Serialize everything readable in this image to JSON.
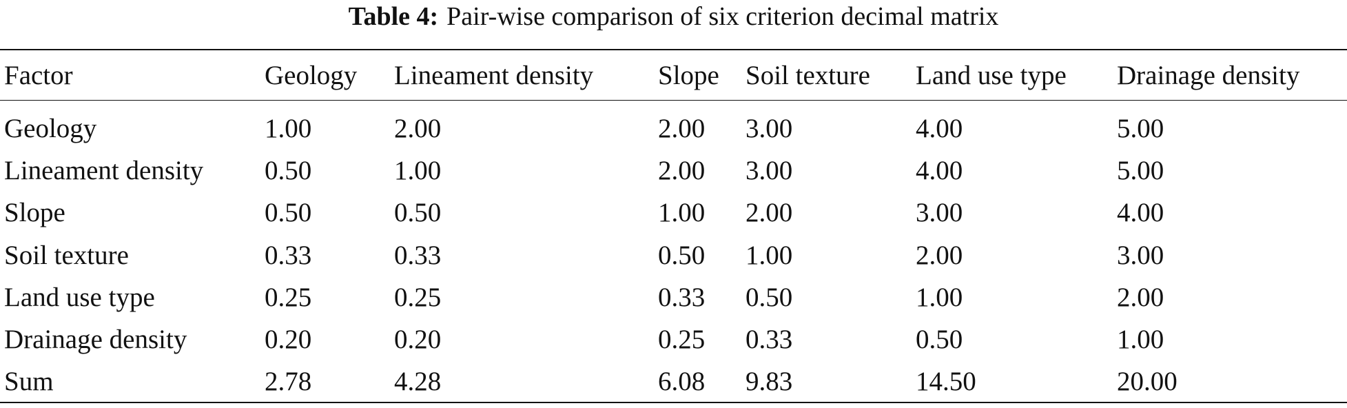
{
  "caption": {
    "label": "Table 4:",
    "text": "Pair-wise comparison of six criterion decimal matrix"
  },
  "table": {
    "header": [
      "Factor",
      "Geology",
      "Lineament density",
      "Slope",
      "Soil texture",
      "Land use type",
      "Drainage density"
    ],
    "rows": [
      [
        "Geology",
        "1.00",
        "2.00",
        "2.00",
        "3.00",
        "4.00",
        "5.00"
      ],
      [
        "Lineament density",
        "0.50",
        "1.00",
        "2.00",
        "3.00",
        "4.00",
        "5.00"
      ],
      [
        "Slope",
        "0.50",
        "0.50",
        "1.00",
        "2.00",
        "3.00",
        "4.00"
      ],
      [
        "Soil texture",
        "0.33",
        "0.33",
        "0.50",
        "1.00",
        "2.00",
        "3.00"
      ],
      [
        "Land use type",
        "0.25",
        "0.25",
        "0.33",
        "0.50",
        "1.00",
        "2.00"
      ],
      [
        "Drainage density",
        "0.20",
        "0.20",
        "0.25",
        "0.33",
        "0.50",
        "1.00"
      ],
      [
        "Sum",
        "2.78",
        "4.28",
        "6.08",
        "9.83",
        "14.50",
        "20.00"
      ]
    ]
  }
}
